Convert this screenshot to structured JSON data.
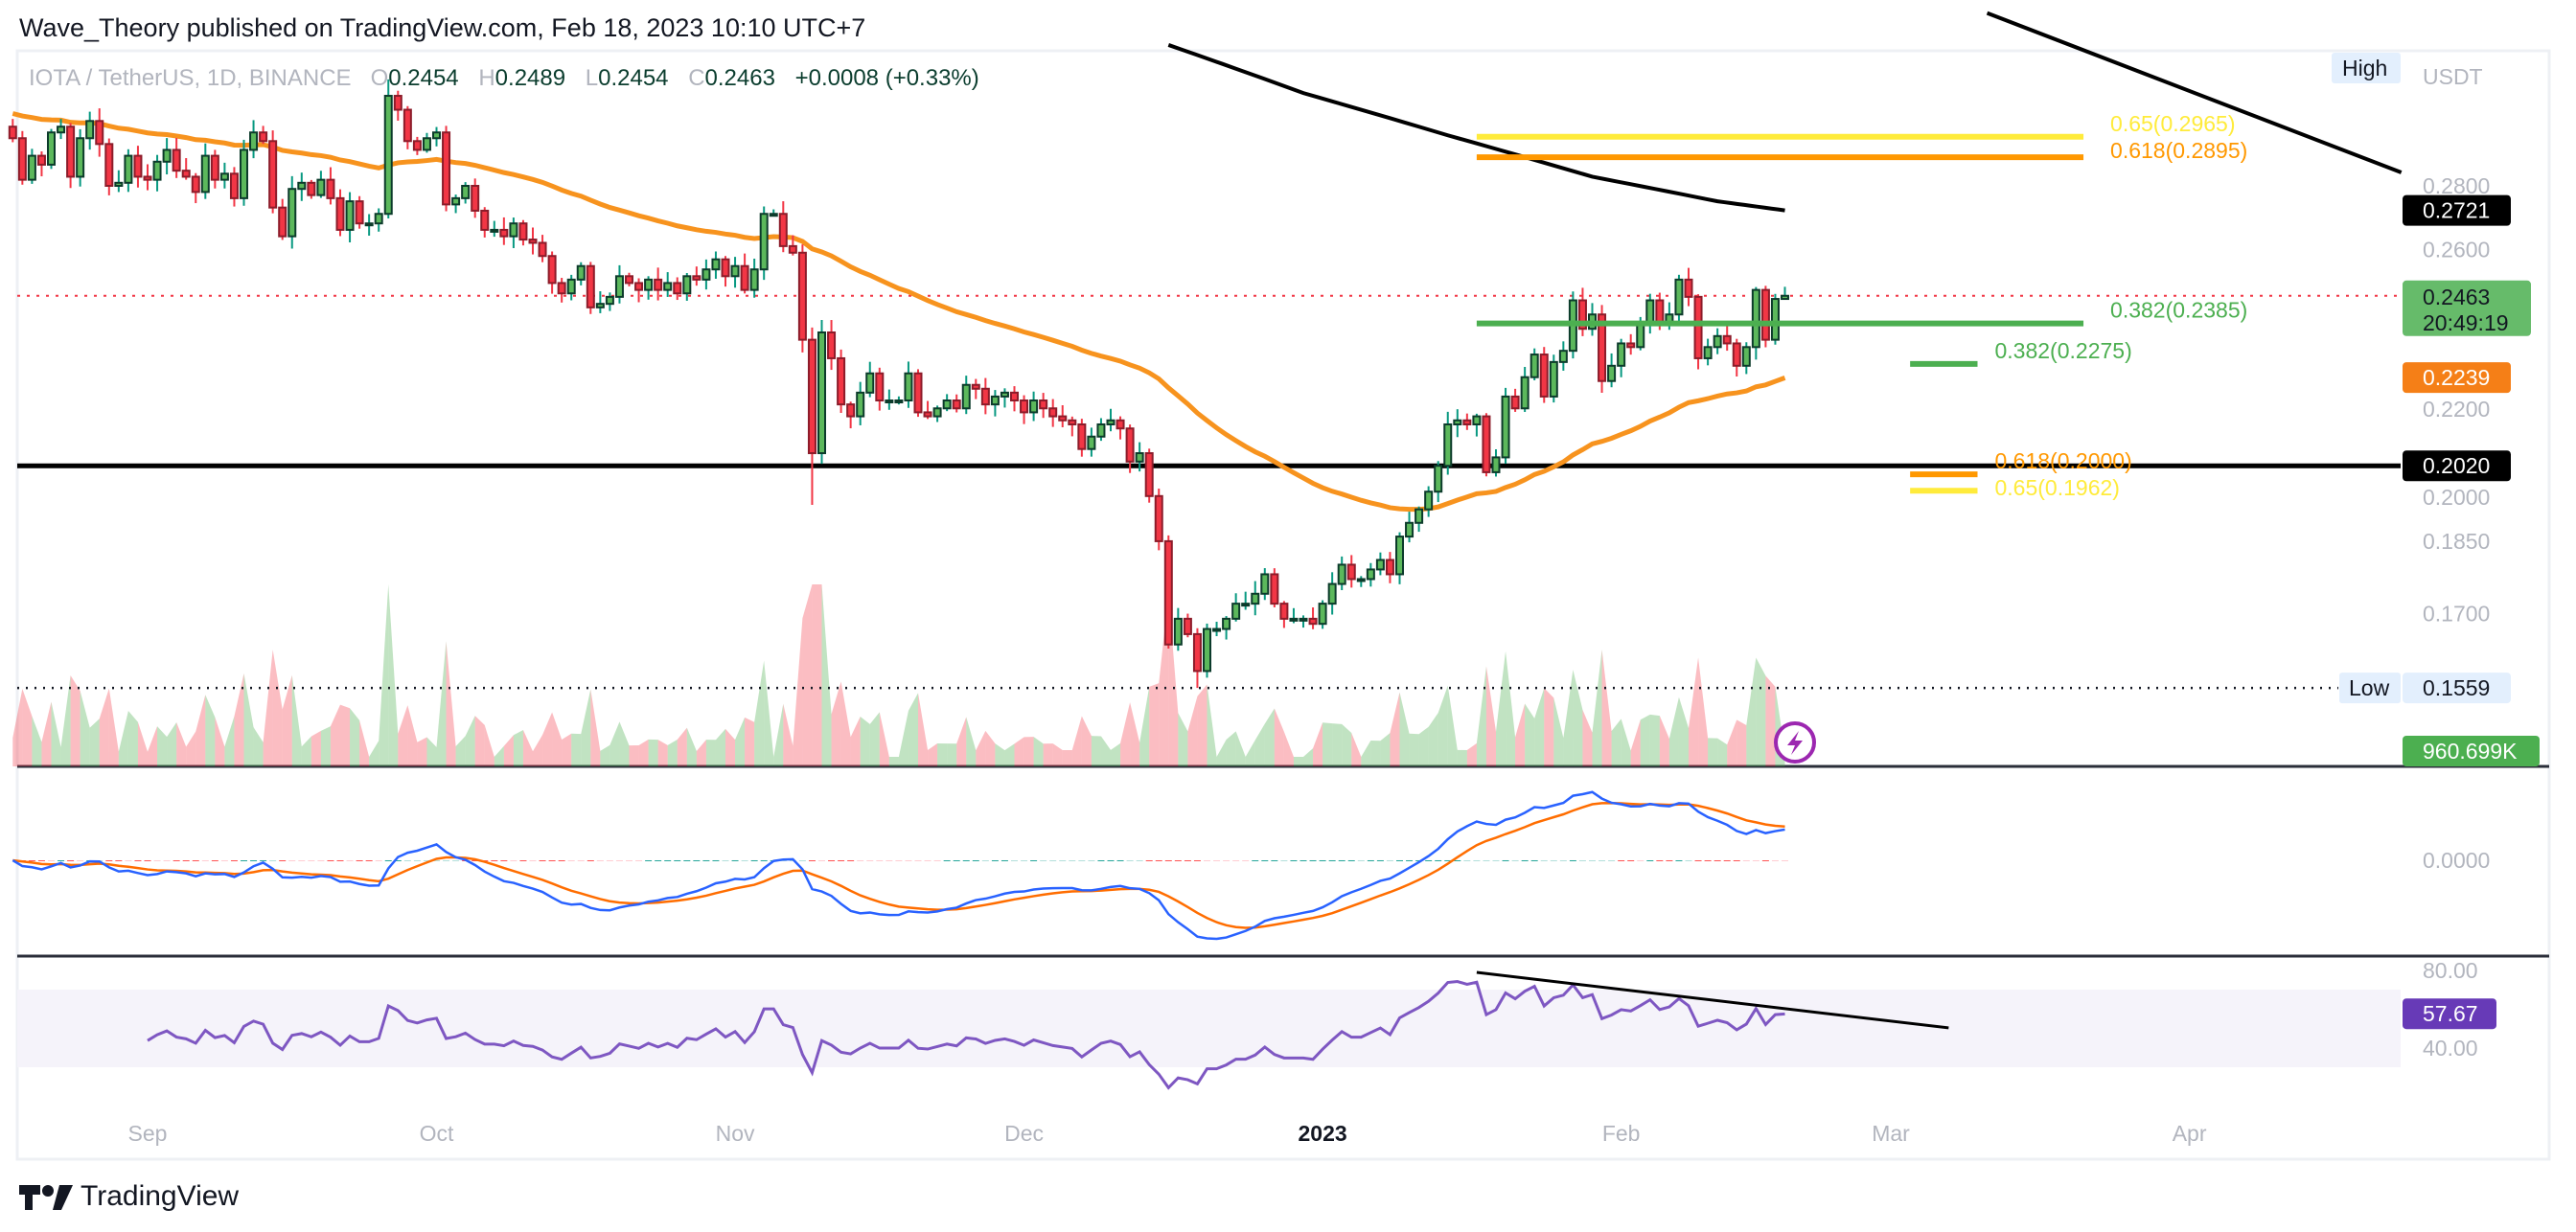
{
  "header": {
    "publisher_line": "Wave_Theory published on TradingView.com, Feb 18, 2023 10:10 UTC+7"
  },
  "legend": {
    "symbol": "IOTA / TetherUS, 1D, BINANCE",
    "o_label": "O",
    "o": "0.2454",
    "h_label": "H",
    "h": "0.2489",
    "l_label": "L",
    "l": "0.2454",
    "c_label": "C",
    "c": "0.2463",
    "change": "+0.0008 (+0.33%)"
  },
  "price_axis": {
    "currency": "USDT",
    "high_label": "High",
    "low_label": "Low",
    "ticks": [
      {
        "label": "0.2800",
        "value": 0.28
      },
      {
        "label": "0.2600",
        "value": 0.26
      },
      {
        "label": "0.2200",
        "value": 0.22
      },
      {
        "label": "0.2000",
        "value": 0.2
      },
      {
        "label": "0.1850",
        "value": 0.185
      },
      {
        "label": "0.1700",
        "value": 0.17
      }
    ],
    "badges": {
      "ema200": {
        "text": "0.2721",
        "value": 0.2721,
        "color": "#000000"
      },
      "last": {
        "text": "0.2463",
        "value": 0.2463,
        "countdown": "20:49:19",
        "color": "#66bb6a"
      },
      "ema50": {
        "text": "0.2239",
        "value": 0.2239,
        "color": "#f57f17"
      },
      "support": {
        "text": "0.2020",
        "value": 0.202,
        "color": "#000000"
      },
      "low": {
        "text": "0.1559",
        "value": 0.1559
      }
    },
    "volume_badge": "960.699K"
  },
  "macd_axis": {
    "zero_label": "0.0000"
  },
  "rsi_axis": {
    "ticks": [
      {
        "label": "80.00",
        "value": 80
      },
      {
        "label": "40.00",
        "value": 40
      }
    ],
    "value_badge": "57.67"
  },
  "time_axis": {
    "labels": [
      {
        "label": "Sep",
        "day": 0
      },
      {
        "label": "Oct",
        "day": 30
      },
      {
        "label": "Nov",
        "day": 61
      },
      {
        "label": "Dec",
        "day": 91
      },
      {
        "label": "2023",
        "day": 122,
        "bold": true
      },
      {
        "label": "Feb",
        "day": 153
      },
      {
        "label": "Mar",
        "day": 181
      },
      {
        "label": "Apr",
        "day": 212
      }
    ]
  },
  "fib_levels": [
    {
      "text": "0.65(0.2965)",
      "value": 0.2965,
      "from_day": 138,
      "to_day": 201,
      "color": "#ffeb3b"
    },
    {
      "text": "0.618(0.2895)",
      "value": 0.2895,
      "from_day": 138,
      "to_day": 201,
      "color": "#ff9800"
    },
    {
      "text": "0.382(0.2385)",
      "value": 0.2385,
      "from_day": 138,
      "to_day": 201,
      "color": "#4caf50"
    },
    {
      "text": "0.382(0.2275)",
      "value": 0.2275,
      "from_day": 183,
      "to_day": 190,
      "color": "#4caf50"
    },
    {
      "text": "0.618(0.2000)",
      "value": 0.2,
      "from_day": 183,
      "to_day": 190,
      "color": "#ff9800"
    },
    {
      "text": "0.65(0.1962)",
      "value": 0.1962,
      "from_day": 183,
      "to_day": 190,
      "color": "#ffeb3b"
    }
  ],
  "brand": {
    "name": "TradingView"
  },
  "colors": {
    "up": "#5cb85c",
    "down": "#f23645",
    "ema50": "#f7931e",
    "macd": "#2962ff",
    "signal": "#ff6d00",
    "rsi": "#7e57c2"
  },
  "chart_data": {
    "type": "candlestick",
    "title": "IOTA / TetherUS, 1D, BINANCE",
    "first_day": -14,
    "first_open": 0.3,
    "closes": [
      0.296,
      0.282,
      0.29,
      0.287,
      0.298,
      0.3,
      0.283,
      0.296,
      0.302,
      0.294,
      0.28,
      0.281,
      0.29,
      0.283,
      0.282,
      0.288,
      0.292,
      0.285,
      0.283,
      0.278,
      0.29,
      0.282,
      0.284,
      0.276,
      0.292,
      0.298,
      0.295,
      0.273,
      0.264,
      0.279,
      0.281,
      0.277,
      0.282,
      0.276,
      0.266,
      0.275,
      0.268,
      0.268,
      0.271,
      0.311,
      0.306,
      0.295,
      0.292,
      0.296,
      0.298,
      0.274,
      0.276,
      0.28,
      0.272,
      0.266,
      0.266,
      0.264,
      0.268,
      0.263,
      0.262,
      0.258,
      0.25,
      0.247,
      0.251,
      0.255,
      0.243,
      0.244,
      0.246,
      0.252,
      0.25,
      0.248,
      0.251,
      0.248,
      0.25,
      0.247,
      0.252,
      0.251,
      0.254,
      0.257,
      0.252,
      0.255,
      0.248,
      0.254,
      0.271,
      0.271,
      0.261,
      0.259,
      0.234,
      0.205,
      0.236,
      0.229,
      0.217,
      0.214,
      0.22,
      0.225,
      0.218,
      0.218,
      0.218,
      0.225,
      0.215,
      0.214,
      0.216,
      0.218,
      0.216,
      0.222,
      0.221,
      0.217,
      0.219,
      0.22,
      0.218,
      0.215,
      0.218,
      0.216,
      0.214,
      0.213,
      0.212,
      0.206,
      0.209,
      0.212,
      0.213,
      0.211,
      0.203,
      0.205,
      0.195,
      0.185,
      0.164,
      0.169,
      0.166,
      0.159,
      0.167,
      0.167,
      0.169,
      0.172,
      0.172,
      0.174,
      0.178,
      0.172,
      0.169,
      0.169,
      0.169,
      0.168,
      0.172,
      0.176,
      0.18,
      0.177,
      0.177,
      0.179,
      0.181,
      0.178,
      0.186,
      0.189,
      0.192,
      0.196,
      0.202,
      0.212,
      0.213,
      0.212,
      0.214,
      0.2005,
      0.204,
      0.219,
      0.216,
      0.224,
      0.23,
      0.219,
      0.228,
      0.231,
      0.245,
      0.237,
      0.241,
      0.223,
      0.227,
      0.233,
      0.232,
      0.238,
      0.245,
      0.238,
      0.241,
      0.251,
      0.246,
      0.229,
      0.232,
      0.235,
      0.233,
      0.227,
      0.232,
      0.248,
      0.234,
      0.2454,
      0.2463
    ],
    "wick_overrides": {
      "39": [
        0.317,
        null
      ],
      "83": [
        null,
        0.193
      ],
      "123": [
        null,
        0.1559
      ],
      "184": [
        0.2489,
        0.2454
      ]
    },
    "ema50_seed": 0.305,
    "ema200_points": [
      [
        106,
        0.33
      ],
      [
        120,
        0.312
      ],
      [
        135,
        0.297
      ],
      [
        150,
        0.283
      ],
      [
        163,
        0.275
      ],
      [
        170,
        0.2721
      ]
    ],
    "descending_trendline": [
      [
        191,
        0.3425
      ],
      [
        234,
        0.2844
      ]
    ],
    "support_level": 0.202,
    "rsi_trendline": [
      [
        138,
        79
      ],
      [
        187,
        50.4
      ]
    ],
    "yscale": "log",
    "ylim": [
      0.1559,
      0.317
    ]
  }
}
